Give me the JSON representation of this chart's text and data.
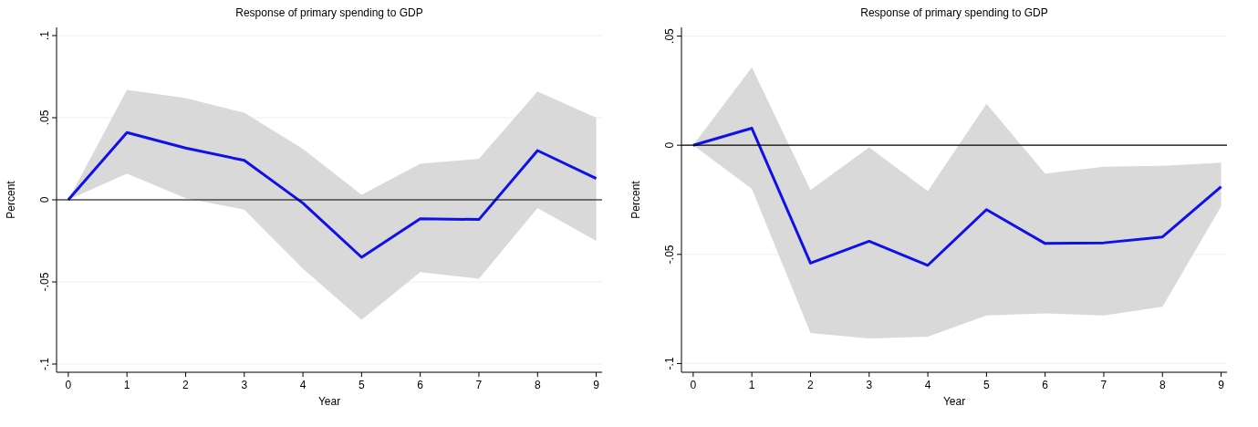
{
  "chart_data": [
    {
      "type": "line",
      "title": "Response of primary spending to GDP",
      "xlabel": "Year",
      "ylabel": "Percent",
      "x": [
        0,
        1,
        2,
        3,
        4,
        5,
        6,
        7,
        8,
        9
      ],
      "xlim": [
        -0.2,
        9.1
      ],
      "xticks": [
        0,
        1,
        2,
        3,
        4,
        5,
        6,
        7,
        8,
        9
      ],
      "ylim": [
        -0.105,
        0.105
      ],
      "yticks": [
        {
          "value": 0.1,
          "label": ".1"
        },
        {
          "value": 0.05,
          "label": ".05"
        },
        0,
        {
          "value": -0.05,
          "label": "-.05"
        },
        {
          "value": -0.1,
          "label": "-.1"
        }
      ],
      "grid": "y",
      "marker": "none",
      "line_style": "solid",
      "ref_lines": [
        {
          "axis": "y",
          "value": 0,
          "color": "#000000"
        }
      ],
      "series": [
        {
          "color": "#1010e8",
          "values": [
            0,
            0.041,
            0.0315,
            0.024,
            -0.002,
            -0.035,
            -0.0115,
            -0.012,
            0.03,
            0.013
          ],
          "lower": [
            0,
            0.016,
            0.001,
            -0.006,
            -0.042,
            -0.073,
            -0.044,
            -0.048,
            -0.005,
            -0.025
          ],
          "upper": [
            0,
            0.067,
            0.062,
            0.053,
            0.031,
            0.003,
            0.022,
            0.025,
            0.066,
            0.05
          ]
        }
      ]
    },
    {
      "type": "line",
      "title": "Response of primary spending to GDP",
      "xlabel": "Year",
      "ylabel": "Percent",
      "x": [
        0,
        1,
        2,
        3,
        4,
        5,
        6,
        7,
        8,
        9
      ],
      "xlim": [
        -0.2,
        9.1
      ],
      "xticks": [
        0,
        1,
        2,
        3,
        4,
        5,
        6,
        7,
        8,
        9
      ],
      "ylim": [
        -0.104,
        0.054
      ],
      "yticks": [
        {
          "value": 0.05,
          "label": ".05"
        },
        0,
        {
          "value": -0.05,
          "label": "-.05"
        },
        {
          "value": -0.1,
          "label": "-.1"
        }
      ],
      "grid": "y",
      "marker": "none",
      "line_style": "solid",
      "ref_lines": [
        {
          "axis": "y",
          "value": 0,
          "color": "#000000"
        }
      ],
      "series": [
        {
          "color": "#1010e8",
          "values": [
            0,
            0.0078,
            -0.054,
            -0.044,
            -0.055,
            -0.0295,
            -0.045,
            -0.0447,
            -0.042,
            -0.019
          ],
          "lower": [
            0,
            -0.02,
            -0.086,
            -0.0885,
            -0.0877,
            -0.078,
            -0.077,
            -0.078,
            -0.074,
            -0.028
          ],
          "upper": [
            0,
            0.0357,
            -0.0205,
            -0.001,
            -0.021,
            0.019,
            -0.013,
            -0.0098,
            -0.0094,
            -0.008
          ]
        }
      ]
    }
  ]
}
